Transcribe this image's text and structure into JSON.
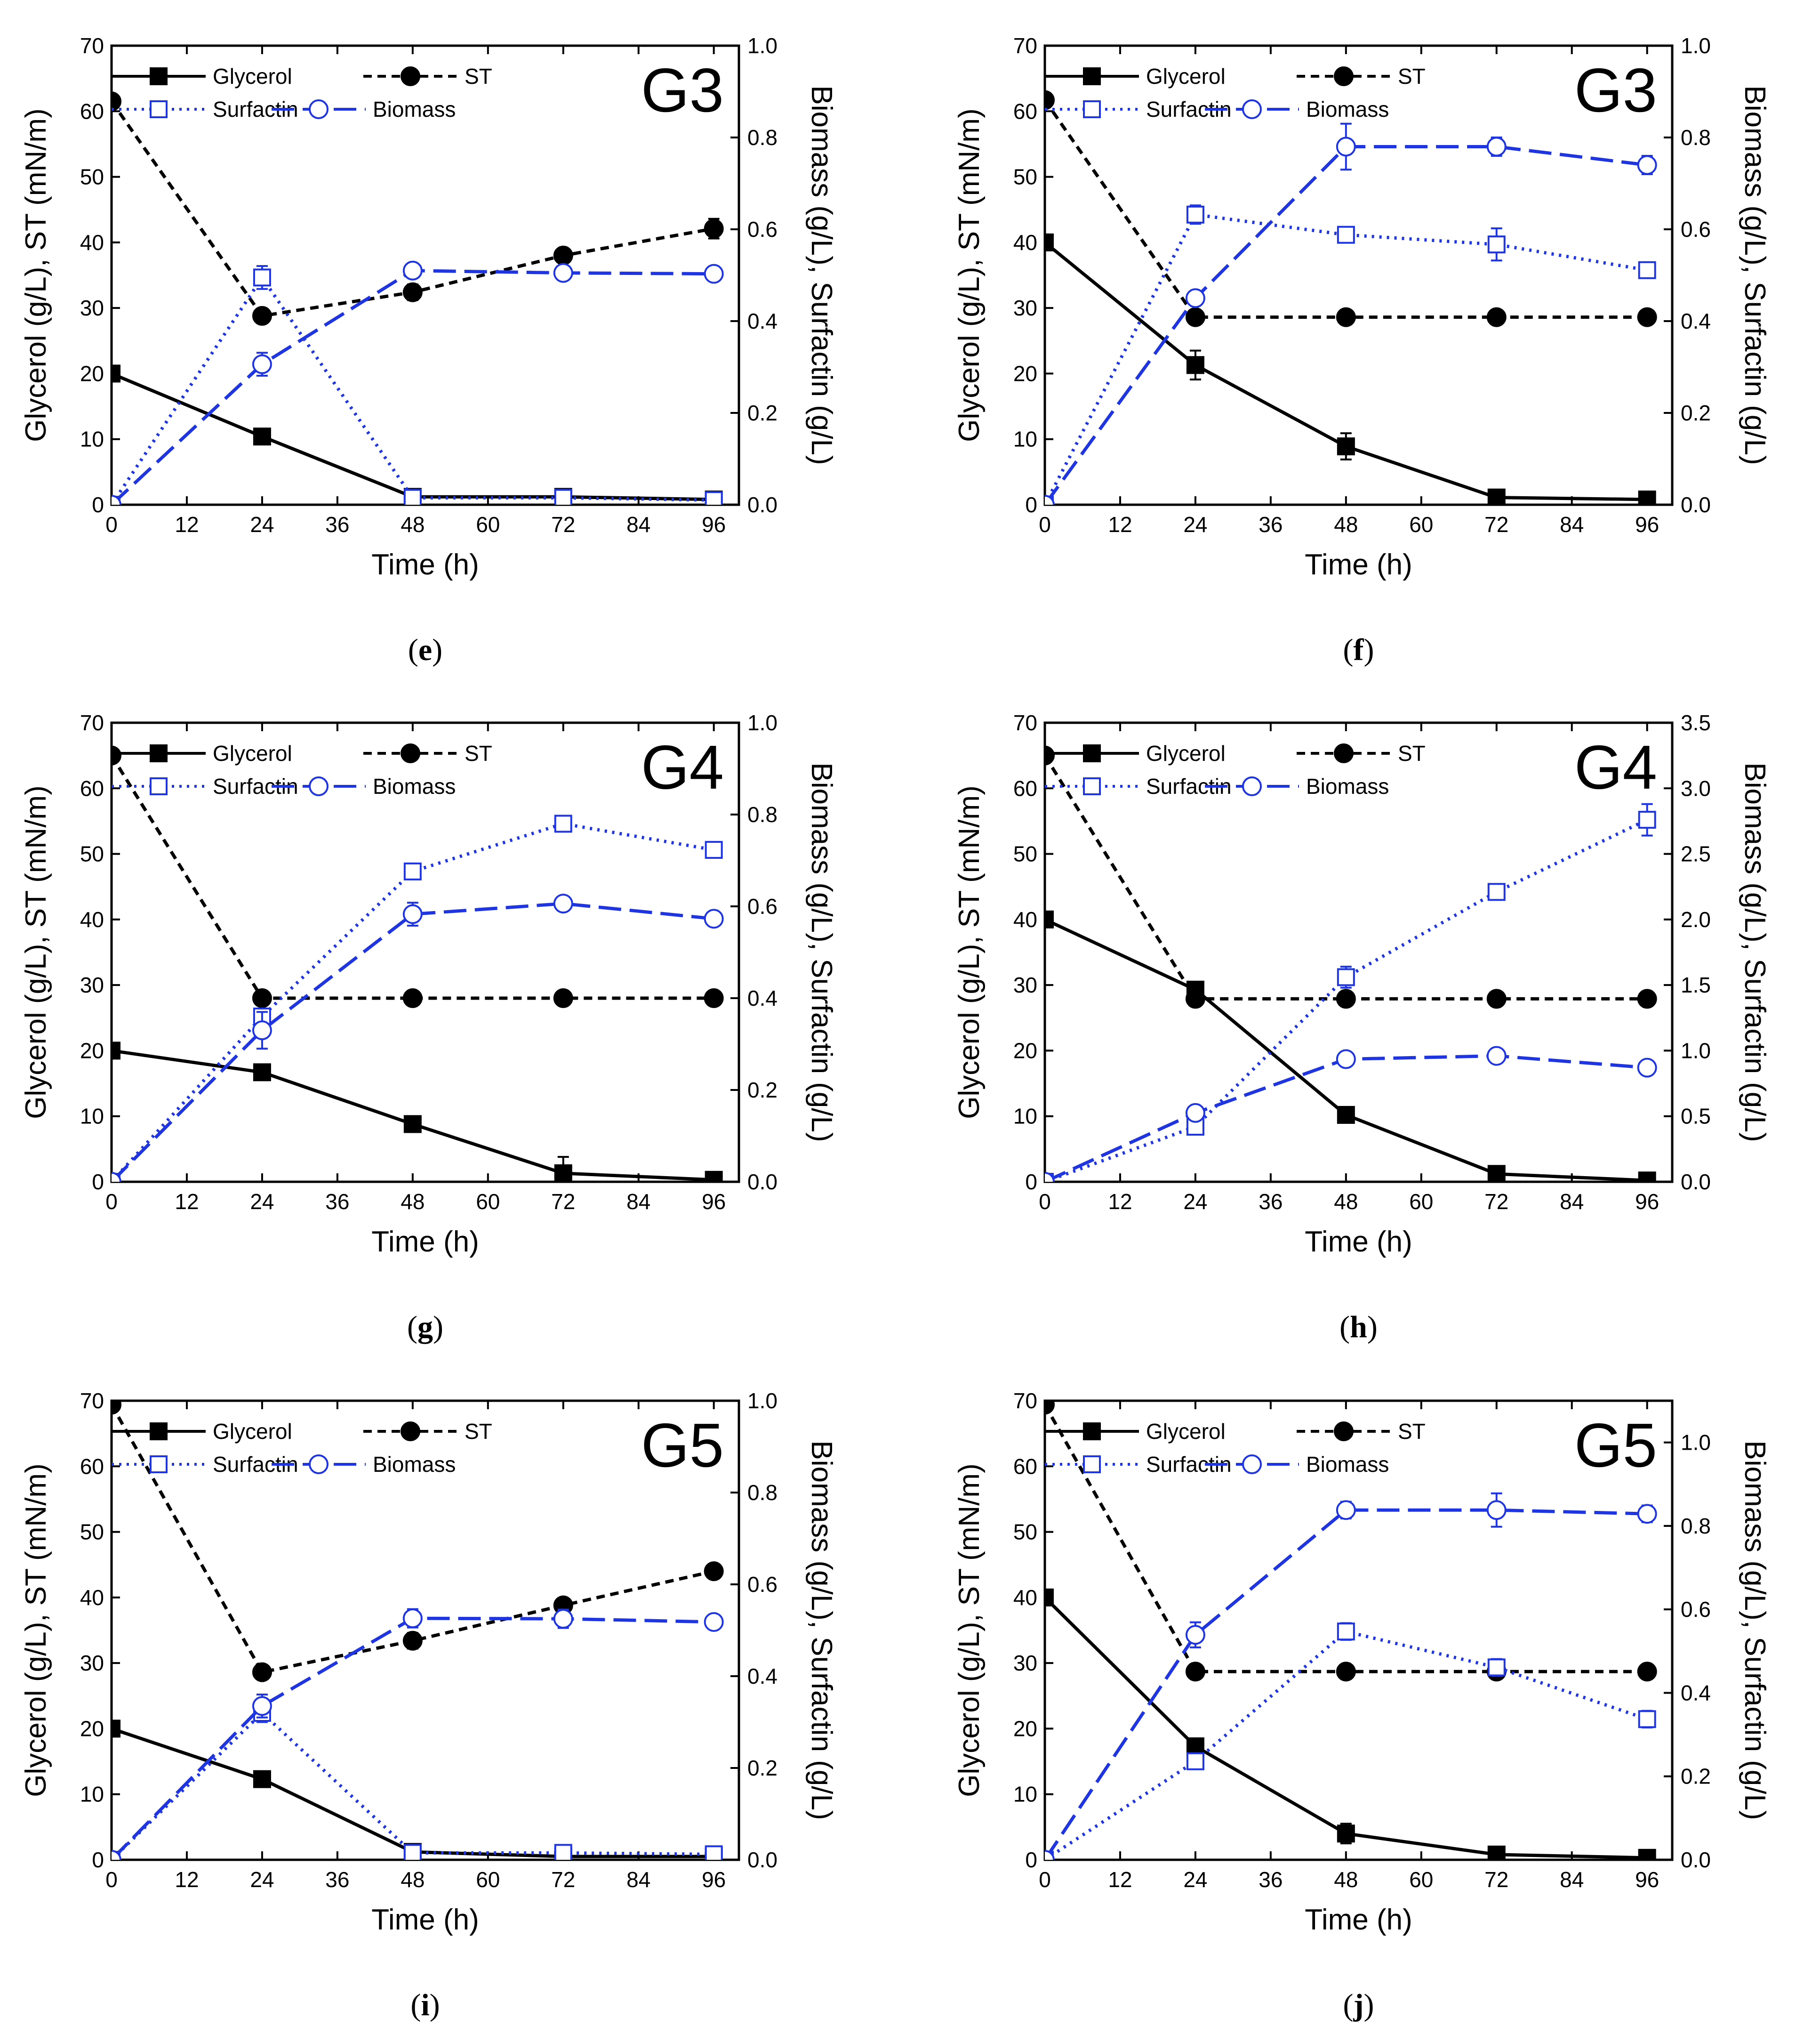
{
  "figure": {
    "x_label": "Time (h)",
    "y_left_label": "Glycerol (g/L), ST (mN/m)",
    "y_right_label": "Biomass (g/L), Surfactin (g/L)",
    "legend": [
      "Glycerol",
      "ST",
      "Surfactin",
      "Biomass"
    ],
    "x_ticks": [
      0,
      12,
      24,
      36,
      48,
      60,
      72,
      84,
      96
    ],
    "colors": {
      "black": "#000000",
      "blue": "#1f35e0"
    }
  },
  "chart_data": [
    {
      "type": "line",
      "panel": "(e)",
      "label_letter": "e",
      "title": "G3",
      "x": [
        0,
        24,
        48,
        72,
        96
      ],
      "xlim": [
        0,
        100
      ],
      "ylim_left": [
        0,
        70
      ],
      "left_ticks": [
        0,
        10,
        20,
        30,
        40,
        50,
        60,
        70
      ],
      "ylim_right": [
        0,
        1.0
      ],
      "right_ticks": [
        "0.0",
        "0.2",
        "0.4",
        "0.6",
        "0.8",
        "1.0"
      ],
      "series": [
        {
          "name": "Glycerol",
          "axis": "left",
          "values": [
            20,
            10.4,
            1.2,
            1.2,
            0.8
          ],
          "err": [
            0,
            0.8,
            0.5,
            0.5,
            0.4
          ]
        },
        {
          "name": "ST",
          "axis": "left",
          "values": [
            61.5,
            28.8,
            32.4,
            38.0,
            42.1
          ],
          "err": [
            0,
            0.8,
            1.2,
            1.0,
            1.5
          ]
        },
        {
          "name": "Surfactin",
          "axis": "right",
          "values": [
            0.0,
            0.495,
            0.015,
            0.015,
            0.01
          ],
          "err": [
            0,
            0.025,
            0.005,
            0.005,
            0.005
          ]
        },
        {
          "name": "Biomass",
          "axis": "right",
          "values": [
            0.0,
            0.306,
            0.51,
            0.505,
            0.503
          ],
          "err": [
            0,
            0.025,
            0.015,
            0.01,
            0.01
          ]
        }
      ]
    },
    {
      "type": "line",
      "panel": "(f)",
      "label_letter": "f",
      "title": "G3",
      "x": [
        0,
        24,
        48,
        72,
        96
      ],
      "xlim": [
        0,
        100
      ],
      "ylim_left": [
        0,
        70
      ],
      "left_ticks": [
        0,
        10,
        20,
        30,
        40,
        50,
        60,
        70
      ],
      "ylim_right": [
        0,
        1.0
      ],
      "right_ticks": [
        "0.0",
        "0.2",
        "0.4",
        "0.6",
        "0.8",
        "1.0"
      ],
      "series": [
        {
          "name": "Glycerol",
          "axis": "left",
          "values": [
            40,
            21.3,
            8.9,
            1.1,
            0.8
          ],
          "err": [
            0,
            2.2,
            2.0,
            0.8,
            0.5
          ]
        },
        {
          "name": "ST",
          "axis": "left",
          "values": [
            61.7,
            28.6,
            28.6,
            28.6,
            28.6
          ],
          "err": [
            0,
            0.5,
            0.5,
            0.5,
            0.5
          ]
        },
        {
          "name": "Surfactin",
          "axis": "right",
          "values": [
            0.0,
            0.632,
            0.588,
            0.567,
            0.511
          ],
          "err": [
            0,
            0.02,
            0.015,
            0.035,
            0.015
          ]
        },
        {
          "name": "Biomass",
          "axis": "right",
          "values": [
            0.0,
            0.45,
            0.78,
            0.78,
            0.74
          ],
          "err": [
            0,
            0.01,
            0.05,
            0.02,
            0.02
          ]
        }
      ]
    },
    {
      "type": "line",
      "panel": "(g)",
      "label_letter": "g",
      "title": "G4",
      "x": [
        0,
        24,
        48,
        72,
        96
      ],
      "xlim": [
        0,
        100
      ],
      "ylim_left": [
        0,
        70
      ],
      "left_ticks": [
        0,
        10,
        20,
        30,
        40,
        50,
        60,
        70
      ],
      "ylim_right": [
        0,
        1.0
      ],
      "right_ticks": [
        "0.0",
        "0.2",
        "0.4",
        "0.6",
        "0.8",
        "1.0"
      ],
      "series": [
        {
          "name": "Glycerol",
          "axis": "left",
          "values": [
            20,
            16.7,
            8.8,
            1.3,
            0.3
          ],
          "err": [
            0,
            0.8,
            0.8,
            2.5,
            0.4
          ]
        },
        {
          "name": "ST",
          "axis": "left",
          "values": [
            65,
            28.0,
            28.0,
            28.0,
            28.0
          ],
          "err": [
            0,
            0.5,
            0.5,
            0.5,
            0.5
          ]
        },
        {
          "name": "Surfactin",
          "axis": "right",
          "values": [
            0.0,
            0.36,
            0.676,
            0.78,
            0.723
          ],
          "err": [
            0,
            0.015,
            0.015,
            0.015,
            0.015
          ]
        },
        {
          "name": "Biomass",
          "axis": "right",
          "values": [
            0.0,
            0.33,
            0.583,
            0.606,
            0.573
          ],
          "err": [
            0,
            0.04,
            0.025,
            0.015,
            0.015
          ]
        }
      ]
    },
    {
      "type": "line",
      "panel": "(h)",
      "label_letter": "h",
      "title": "G4",
      "x": [
        0,
        24,
        48,
        72,
        96
      ],
      "xlim": [
        0,
        100
      ],
      "ylim_left": [
        0,
        70
      ],
      "left_ticks": [
        0,
        10,
        20,
        30,
        40,
        50,
        60,
        70
      ],
      "ylim_right": [
        0,
        3.5
      ],
      "right_ticks": [
        "0.0",
        "0.5",
        "1.0",
        "1.5",
        "2.0",
        "2.5",
        "3.0",
        "3.5"
      ],
      "series": [
        {
          "name": "Glycerol",
          "axis": "left",
          "values": [
            40,
            29.3,
            10.2,
            1.2,
            0.2
          ],
          "err": [
            0,
            1.0,
            1.0,
            1.2,
            0.3
          ]
        },
        {
          "name": "ST",
          "axis": "left",
          "values": [
            65,
            27.9,
            27.9,
            27.9,
            27.9
          ],
          "err": [
            0,
            0.5,
            0.5,
            0.5,
            0.5
          ]
        },
        {
          "name": "Surfactin",
          "axis": "right",
          "values": [
            0.0,
            0.42,
            1.56,
            2.21,
            2.76
          ],
          "err": [
            0,
            0.05,
            0.08,
            0.04,
            0.12
          ]
        },
        {
          "name": "Biomass",
          "axis": "right",
          "values": [
            0.0,
            0.525,
            0.935,
            0.96,
            0.87
          ],
          "err": [
            0,
            0.04,
            0.05,
            0.05,
            0.05
          ]
        }
      ]
    },
    {
      "type": "line",
      "panel": "(i)",
      "label_letter": "i",
      "title": "G5",
      "x": [
        0,
        24,
        48,
        72,
        96
      ],
      "xlim": [
        0,
        100
      ],
      "ylim_left": [
        0,
        70
      ],
      "left_ticks": [
        0,
        10,
        20,
        30,
        40,
        50,
        60,
        70
      ],
      "ylim_right": [
        0,
        1.0
      ],
      "right_ticks": [
        "0.0",
        "0.2",
        "0.4",
        "0.6",
        "0.8",
        "1.0"
      ],
      "series": [
        {
          "name": "Glycerol",
          "axis": "left",
          "values": [
            20,
            12.3,
            1.2,
            0.5,
            0.5
          ],
          "err": [
            0,
            0.8,
            0.5,
            0.4,
            0.4
          ]
        },
        {
          "name": "ST",
          "axis": "left",
          "values": [
            69.4,
            28.6,
            33.4,
            38.8,
            44.0
          ],
          "err": [
            0,
            0.8,
            1.2,
            1.0,
            0.8
          ]
        },
        {
          "name": "Surfactin",
          "axis": "right",
          "values": [
            0.0,
            0.32,
            0.015,
            0.015,
            0.012
          ],
          "err": [
            0,
            0.02,
            0.005,
            0.01,
            0.01
          ]
        },
        {
          "name": "Biomass",
          "axis": "right",
          "values": [
            0.0,
            0.335,
            0.526,
            0.525,
            0.518
          ],
          "err": [
            0,
            0.025,
            0.02,
            0.02,
            0.015
          ]
        }
      ]
    },
    {
      "type": "line",
      "panel": "(j)",
      "label_letter": "j",
      "title": "G5",
      "x": [
        0,
        24,
        48,
        72,
        96
      ],
      "xlim": [
        0,
        100
      ],
      "ylim_left": [
        0,
        70
      ],
      "left_ticks": [
        0,
        10,
        20,
        30,
        40,
        50,
        60,
        70
      ],
      "ylim_right": [
        0,
        1.1
      ],
      "right_ticks": [
        "0.0",
        "0.2",
        "0.4",
        "0.6",
        "0.8",
        "1.0"
      ],
      "series": [
        {
          "name": "Glycerol",
          "axis": "left",
          "values": [
            40,
            17.3,
            4.0,
            0.8,
            0.3
          ],
          "err": [
            0,
            1.2,
            1.5,
            0.5,
            0.3
          ]
        },
        {
          "name": "ST",
          "axis": "left",
          "values": [
            69.4,
            28.7,
            28.7,
            28.7,
            28.7
          ],
          "err": [
            0,
            0.5,
            0.5,
            0.5,
            0.5
          ]
        },
        {
          "name": "Surfactin",
          "axis": "right",
          "values": [
            0.0,
            0.236,
            0.547,
            0.461,
            0.337
          ],
          "err": [
            0,
            0.015,
            0.02,
            0.02,
            0.02
          ]
        },
        {
          "name": "Biomass",
          "axis": "right",
          "values": [
            0.0,
            0.539,
            0.838,
            0.838,
            0.829
          ],
          "err": [
            0,
            0.03,
            0.02,
            0.04,
            0.02
          ]
        }
      ]
    }
  ]
}
